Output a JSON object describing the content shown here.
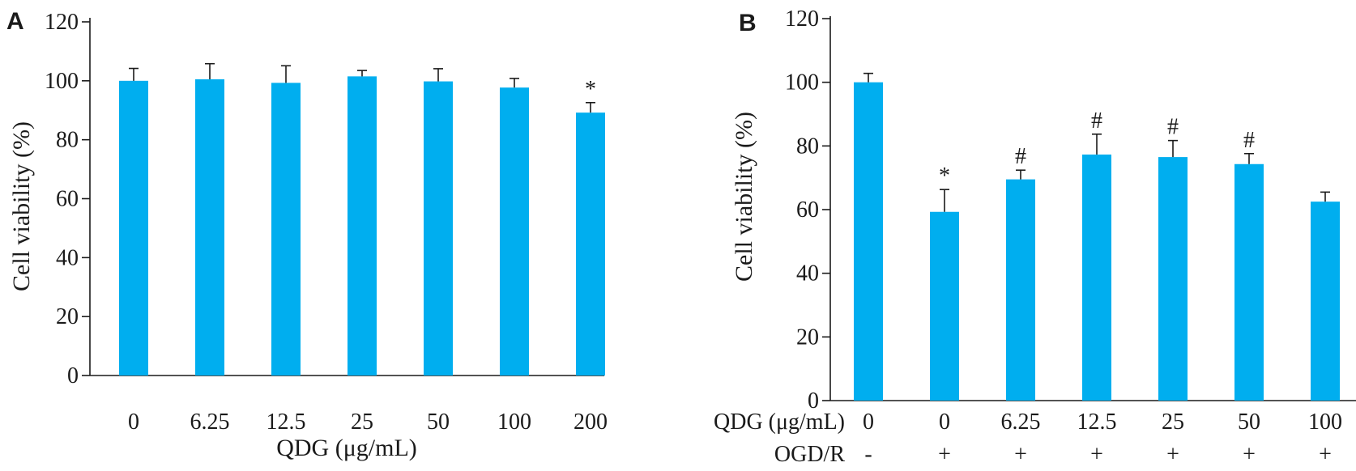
{
  "colors": {
    "bar": "#00aeef",
    "axis": "#1a1a1a"
  },
  "chart_data": [
    {
      "type": "bar",
      "panel": "A",
      "ylabel": "Cell viability (%)",
      "xlabel": "QDG (μg/mL)",
      "ylim": [
        0,
        120
      ],
      "yticks": [
        0,
        20,
        40,
        60,
        80,
        100,
        120
      ],
      "ytick_labels": [
        "0",
        "20",
        "40",
        "60",
        "80",
        "100",
        "120"
      ],
      "categories": [
        "0",
        "6.25",
        "12.5",
        "25",
        "50",
        "100",
        "200"
      ],
      "values": [
        100,
        100.5,
        99.3,
        101.5,
        99.8,
        97.7,
        89.2
      ],
      "errors": [
        4.2,
        5.3,
        5.8,
        2.0,
        4.3,
        3.1,
        3.4
      ],
      "annotations": [
        "",
        "",
        "",
        "",
        "",
        "",
        "*"
      ],
      "grid": false,
      "legend": false
    },
    {
      "type": "bar",
      "panel": "B",
      "ylabel": "Cell viability (%)",
      "ylim": [
        0,
        120
      ],
      "yticks": [
        0,
        20,
        40,
        60,
        80,
        100,
        120
      ],
      "ytick_labels": [
        "0",
        "20",
        "40",
        "60",
        "80",
        "100",
        "120"
      ],
      "categories": [
        "0",
        "0",
        "6.25",
        "12.5",
        "25",
        "50",
        "100"
      ],
      "category_rows": [
        {
          "label": "QDG (μg/mL)",
          "values": [
            "0",
            "0",
            "6.25",
            "12.5",
            "25",
            "50",
            "100"
          ]
        },
        {
          "label": "OGD/R",
          "values": [
            "-",
            "+",
            "+",
            "+",
            "+",
            "+",
            "+"
          ]
        }
      ],
      "values": [
        100,
        59.3,
        69.5,
        77.3,
        76.5,
        74.3,
        62.5
      ],
      "errors": [
        2.8,
        7.0,
        2.9,
        6.4,
        5.2,
        3.3,
        3.0
      ],
      "annotations": [
        "",
        "*",
        "#",
        "#",
        "#",
        "#",
        ""
      ],
      "grid": false,
      "legend": false
    }
  ]
}
